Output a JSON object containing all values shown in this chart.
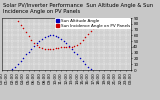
{
  "title": "Solar PV/Inverter Performance  Sun Altitude Angle & Sun Incidence Angle on PV Panels",
  "legend_labels": [
    "Sun Altitude Angle",
    "Sun Incidence Angle on PV Panels"
  ],
  "legend_colors": [
    "#0000bb",
    "#cc0000"
  ],
  "blue_x": [
    0,
    0.5,
    1,
    1.5,
    2,
    2.5,
    3,
    3.5,
    4,
    4.5,
    5,
    5.5,
    6,
    6.5,
    7,
    7.5,
    8,
    8.5,
    9,
    9.5,
    10,
    10.5,
    11,
    11.5,
    12,
    12.5,
    13,
    13.5,
    14,
    14.5,
    15,
    15.5,
    16,
    16.5,
    17,
    17.5,
    18,
    18.5,
    19,
    19.5,
    20,
    20.5,
    21,
    21.5,
    22,
    22.5,
    23,
    23.5,
    24
  ],
  "blue_y": [
    -5,
    -4,
    -3,
    -1,
    2,
    6,
    10,
    16,
    21,
    27,
    32,
    37,
    42,
    46,
    50,
    54,
    57,
    59,
    60,
    60,
    59,
    57,
    54,
    50,
    46,
    42,
    37,
    32,
    27,
    21,
    16,
    10,
    6,
    2,
    -1,
    -3,
    -4,
    -5,
    -5,
    -5,
    -5,
    -5,
    -5,
    -5,
    -5,
    -5,
    -5,
    -5,
    -5
  ],
  "red_x": [
    3,
    3.5,
    4,
    4.5,
    5,
    5.5,
    6,
    6.5,
    7,
    7.5,
    8,
    8.5,
    9,
    9.5,
    10,
    10.5,
    11,
    11.5,
    12,
    12.5,
    13,
    13.5,
    14,
    14.5,
    15,
    15.5,
    16,
    16.5,
    17,
    17.5,
    18,
    18.5,
    19,
    19.5,
    20,
    20.5,
    21
  ],
  "red_y": [
    85,
    78,
    72,
    65,
    58,
    52,
    47,
    43,
    40,
    38,
    37,
    37,
    37,
    37,
    38,
    38,
    39,
    39,
    40,
    40,
    40,
    41,
    43,
    47,
    52,
    57,
    63,
    68,
    73,
    78,
    82,
    85,
    87,
    88,
    87,
    85,
    82
  ],
  "xlim": [
    0,
    24
  ],
  "ylim": [
    0,
    90
  ],
  "yticks": [
    0,
    10,
    20,
    30,
    40,
    50,
    60,
    70,
    80,
    90
  ],
  "ylabel_right": [
    "0",
    "10",
    "20",
    "30",
    "40",
    "50",
    "60",
    "70",
    "80",
    "90"
  ],
  "xtick_labels": [
    "00:00",
    "01:00",
    "02:00",
    "03:00",
    "04:00",
    "05:00",
    "06:00",
    "07:00",
    "08:00",
    "09:00",
    "10:00",
    "11:00",
    "12:00",
    "13:00",
    "14:00",
    "15:00",
    "16:00",
    "17:00",
    "18:00",
    "19:00",
    "20:00",
    "21:00",
    "22:00",
    "23:00",
    "00:00"
  ],
  "xtick_positions": [
    0,
    1,
    2,
    3,
    4,
    5,
    6,
    7,
    8,
    9,
    10,
    11,
    12,
    13,
    14,
    15,
    16,
    17,
    18,
    19,
    20,
    21,
    22,
    23,
    24
  ],
  "bg_color": "#c8c8c8",
  "plot_bg": "#d0d0d0",
  "grid_color": "#ffffff",
  "title_fontsize": 3.8,
  "tick_fontsize": 3.0,
  "legend_fontsize": 3.0,
  "marker_size": 1.2
}
